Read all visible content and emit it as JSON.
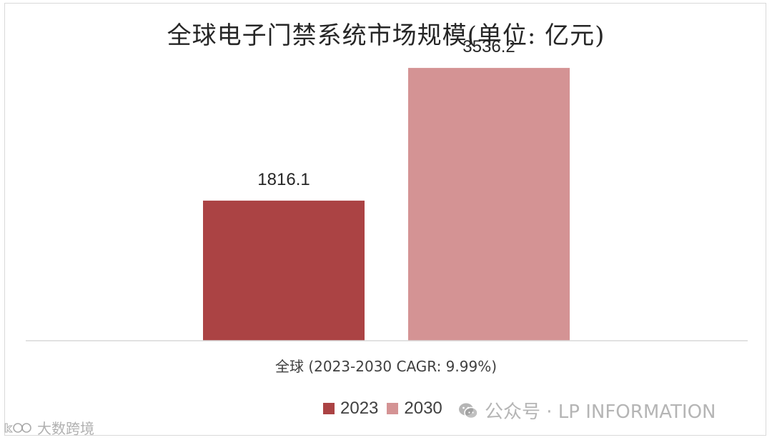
{
  "chart_data": {
    "type": "bar",
    "title": "全球电子门禁系统市场规模(单位: 亿元)",
    "categories": [
      "全球 (2023-2030 CAGR: 9.99%)"
    ],
    "series": [
      {
        "name": "2023",
        "values": [
          1816.1
        ],
        "color": "#ab4344"
      },
      {
        "name": "2030",
        "values": [
          3536.2
        ],
        "color": "#d49394"
      }
    ],
    "data_labels": [
      "1816.1",
      "3536.2"
    ],
    "ylim": [
      0,
      4000
    ],
    "grid": false,
    "legend_position": "bottom"
  },
  "watermark": {
    "icon": "wechat-icon",
    "text": "公众号 · LP INFORMATION"
  },
  "corner_watermark": {
    "icon": "logo-icon",
    "text": "大数跨境"
  }
}
